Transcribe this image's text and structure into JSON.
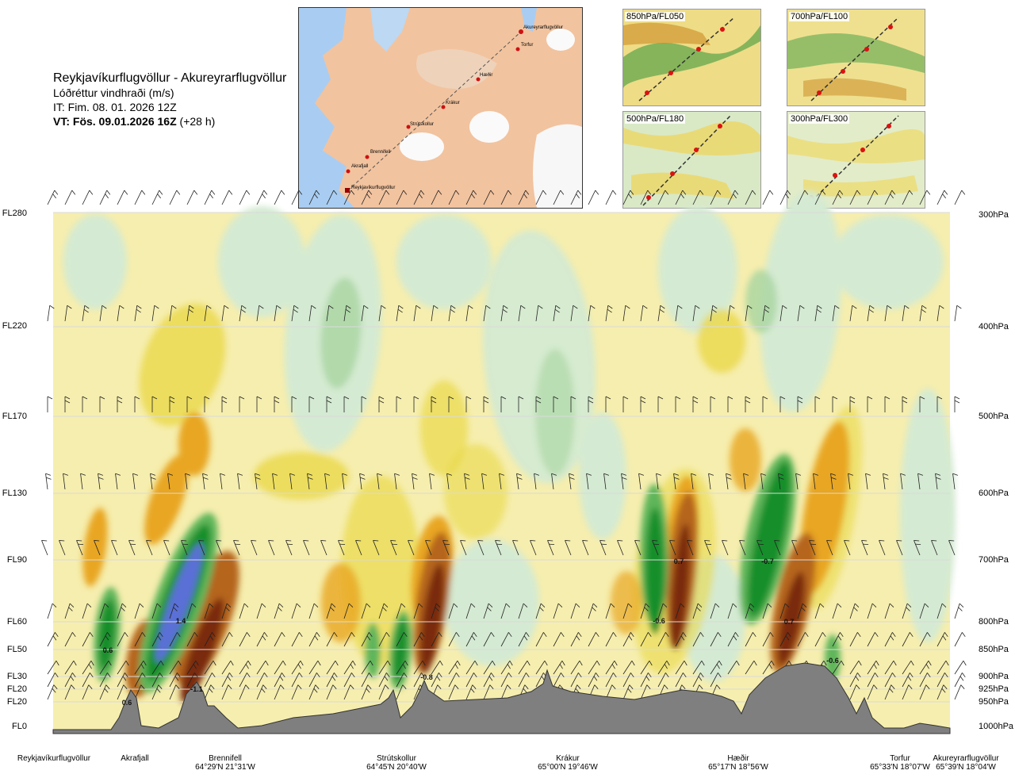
{
  "header": {
    "route": "Reykjavíkurflugvöllur - Akureyrarflugvöllur",
    "variable": "Lóðréttur vindhraði (m/s)",
    "init_time": "IT: Fim. 08. 01. 2026 12Z",
    "valid_time": "VT: Fös. 09.01.2026 16Z",
    "lead": "(+28 h)"
  },
  "map": {
    "waypoints": [
      "Akureyrarflugvöllur",
      "Torfur",
      "Hæðir",
      "Krákur",
      "Strútskollur",
      "Brennifell",
      "Akrafjall",
      "Reykjavíkurflugvöllur"
    ]
  },
  "minimaps": [
    {
      "label": "850hPa/FL050"
    },
    {
      "label": "700hPa/FL100"
    },
    {
      "label": "500hPa/FL180"
    },
    {
      "label": "300hPa/FL300"
    }
  ],
  "flight_levels": [
    "FL280",
    "FL220",
    "FL170",
    "FL130",
    "FL90",
    "FL60",
    "FL50",
    "FL30",
    "FL20",
    "FL20",
    "FL0"
  ],
  "pressure_levels": [
    "300hPa",
    "400hPa",
    "500hPa",
    "600hPa",
    "700hPa",
    "800hPa",
    "850hPa",
    "900hPa",
    "925hPa",
    "950hPa",
    "1000hPa"
  ],
  "locations": [
    {
      "name": "Reykjavíkurflugvöllur",
      "coord": ""
    },
    {
      "name": "Akrafjall",
      "coord": ""
    },
    {
      "name": "Brennifell",
      "coord": "64°29'N 21°31'W"
    },
    {
      "name": "Strútskollur",
      "coord": "64°45'N 20°40'W"
    },
    {
      "name": "Krákur",
      "coord": "65°00'N 19°46'W"
    },
    {
      "name": "Hæðir",
      "coord": "65°17'N 18°56'W"
    },
    {
      "name": "Torfur",
      "coord": "65°33'N 18°07'W"
    },
    {
      "name": "Akureyrarflugvöllur",
      "coord": "65°39'N 18°04'W"
    }
  ],
  "value_labels": [
    "0.6",
    "0.6",
    "1.4",
    "-1.1",
    "-0.8",
    "-0.6",
    "0.7",
    "-0.7",
    "0.7",
    "-0.6"
  ],
  "colors": {
    "terrain": "#7f7f7f",
    "neutral": "#f7efb0",
    "green1": "#d4ead2",
    "green2": "#a8d5a0",
    "green3": "#5fb55a",
    "green4": "#138f2a",
    "blue": "#5a6fd6",
    "yellow": "#ead84a",
    "orange": "#e8a623",
    "red": "#b5651d",
    "darkred": "#7a2a10"
  }
}
